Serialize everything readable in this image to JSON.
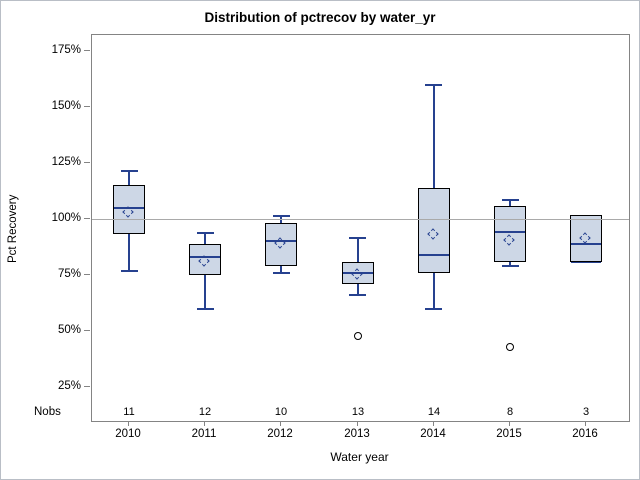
{
  "title": "Distribution of pctrecov by water_yr",
  "nobs_label": "Nobs",
  "y_axis": {
    "label": "Pct Recovery",
    "ticks": [
      "175%",
      "150%",
      "125%",
      "100%",
      "75%",
      "50%",
      "25%"
    ]
  },
  "x_axis": {
    "label": "Water year",
    "categories": [
      "2010",
      "2011",
      "2012",
      "2013",
      "2014",
      "2015",
      "2016"
    ]
  },
  "chart_data": {
    "type": "boxplot",
    "title": "Distribution of pctrecov by water_yr",
    "xlabel": "Water year",
    "ylabel": "Pct Recovery",
    "y_tick_values_pct": [
      175,
      150,
      125,
      100,
      75,
      50,
      25
    ],
    "ylim_pct": [
      10,
      182
    ],
    "reference_line_pct": 100,
    "grid": "horizontal reference line at 100% only",
    "categories": [
      "2010",
      "2011",
      "2012",
      "2013",
      "2014",
      "2015",
      "2016"
    ],
    "nobs": [
      11,
      12,
      10,
      13,
      14,
      8,
      3
    ],
    "series": [
      {
        "category": "2010",
        "n": 11,
        "whisker_low": 77,
        "q1": 93,
        "median": 105,
        "q3": 115,
        "whisker_high": 122,
        "mean": 102.5,
        "outliers": []
      },
      {
        "category": "2011",
        "n": 12,
        "whisker_low": 60,
        "q1": 75,
        "median": 83,
        "q3": 89,
        "whisker_high": 94,
        "mean": 81,
        "outliers": []
      },
      {
        "category": "2012",
        "n": 10,
        "whisker_low": 76,
        "q1": 79,
        "median": 90,
        "q3": 98,
        "whisker_high": 102,
        "mean": 89,
        "outliers": []
      },
      {
        "category": "2013",
        "n": 13,
        "whisker_low": 66,
        "q1": 71,
        "median": 76,
        "q3": 81,
        "whisker_high": 92,
        "mean": 75,
        "outliers": [
          48
        ]
      },
      {
        "category": "2014",
        "n": 14,
        "whisker_low": 60,
        "q1": 76,
        "median": 84,
        "q3": 114,
        "whisker_high": 160,
        "mean": 93,
        "outliers": []
      },
      {
        "category": "2015",
        "n": 8,
        "whisker_low": 79,
        "q1": 81,
        "median": 94,
        "q3": 106,
        "whisker_high": 109,
        "mean": 90,
        "outliers": [
          43
        ]
      },
      {
        "category": "2016",
        "n": 3,
        "whisker_low": 81,
        "q1": 81,
        "median": 89,
        "q3": 102,
        "whisker_high": 102,
        "mean": 91,
        "outliers": []
      }
    ],
    "colors": {
      "box_fill": "#cdd7e6",
      "box_border": "#000000",
      "whisker_median_mean_line": "#26418f",
      "reference_line": "#a9a9a9",
      "outlier_marker": "#000000",
      "plot_border": "#848484"
    }
  }
}
